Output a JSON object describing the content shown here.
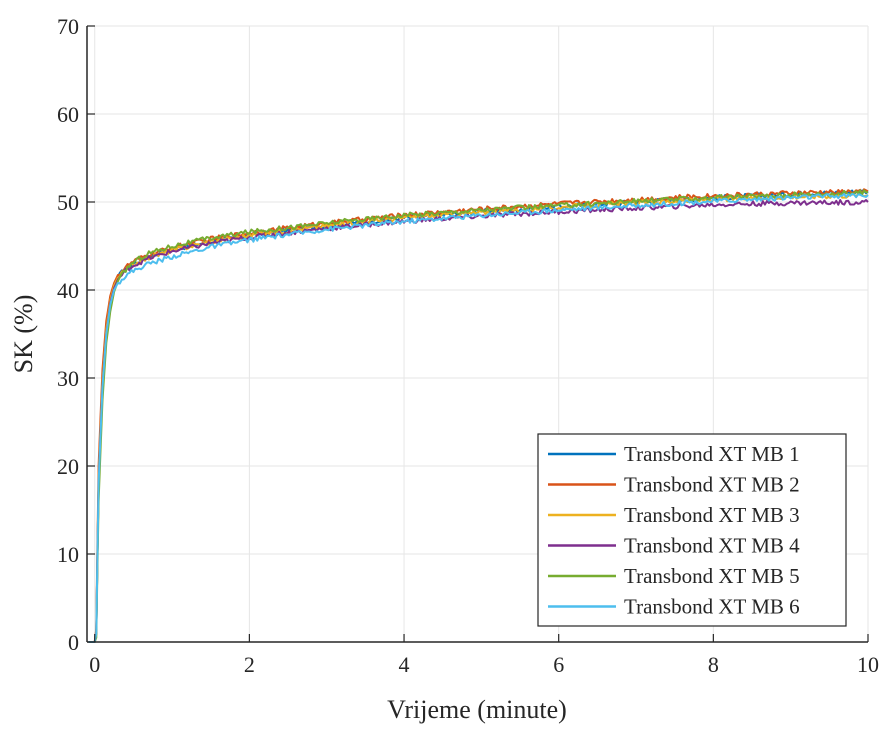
{
  "chart_data": {
    "type": "line",
    "title": "",
    "xlabel": "Vrijeme (minute)",
    "ylabel": "SK (%)",
    "xlim": [
      -0.1,
      10
    ],
    "ylim": [
      0,
      70
    ],
    "xticks": [
      0,
      2,
      4,
      6,
      8,
      10
    ],
    "yticks": [
      0,
      10,
      20,
      30,
      40,
      50,
      60,
      70
    ],
    "xtick_labels": [
      "0",
      "2",
      "4",
      "6",
      "8",
      "10"
    ],
    "ytick_labels": [
      "0",
      "10",
      "20",
      "30",
      "40",
      "50",
      "60",
      "70"
    ],
    "grid": true,
    "legend_position": "bottom-right",
    "x": [
      -0.08,
      0.0,
      0.02,
      0.05,
      0.1,
      0.15,
      0.2,
      0.25,
      0.3,
      0.4,
      0.5,
      0.7,
      1.0,
      1.5,
      2.0,
      3.0,
      4.0,
      5.0,
      6.0,
      7.0,
      8.0,
      9.0,
      10.0
    ],
    "series": [
      {
        "name": "Transbond XT MB 1",
        "color": "#0072BD",
        "values": [
          0,
          0,
          1,
          18,
          29,
          35,
          38.5,
          40.5,
          41.5,
          42.5,
          43,
          43.8,
          44.6,
          45.5,
          46.2,
          47.3,
          48.2,
          48.9,
          49.5,
          50.0,
          50.5,
          50.9,
          51.2
        ]
      },
      {
        "name": "Transbond XT MB 2",
        "color": "#D95319",
        "values": [
          0,
          0,
          1.5,
          20,
          31,
          36.5,
          39.3,
          40.8,
          41.7,
          42.6,
          43.2,
          44.0,
          44.8,
          45.8,
          46.5,
          47.6,
          48.5,
          49.2,
          49.8,
          50.3,
          50.7,
          51.0,
          51.2
        ]
      },
      {
        "name": "Transbond XT MB 3",
        "color": "#EDB120",
        "values": [
          0,
          0,
          1,
          18.5,
          29.5,
          35.5,
          38.8,
          40.5,
          41.4,
          42.3,
          42.9,
          43.7,
          44.5,
          45.5,
          46.2,
          47.3,
          48.2,
          48.8,
          49.4,
          49.9,
          50.3,
          50.6,
          50.8
        ]
      },
      {
        "name": "Transbond XT MB 4",
        "color": "#7E2F8E",
        "values": [
          0,
          0,
          1,
          18,
          29,
          35,
          38.5,
          40.2,
          41.2,
          42.2,
          42.8,
          43.6,
          44.4,
          45.3,
          46.0,
          47.0,
          47.8,
          48.4,
          48.9,
          49.3,
          49.7,
          49.9,
          50.0
        ]
      },
      {
        "name": "Transbond XT MB 5",
        "color": "#77AC30",
        "values": [
          0,
          0,
          0.5,
          16,
          27.5,
          34,
          37.5,
          39.8,
          41.0,
          42.3,
          43.2,
          44.2,
          45.0,
          45.9,
          46.6,
          47.6,
          48.5,
          49.1,
          49.6,
          50.1,
          50.5,
          50.8,
          51.1
        ]
      },
      {
        "name": "Transbond XT MB 6",
        "color": "#4DBEEE",
        "values": [
          0,
          0,
          1,
          18,
          29,
          35,
          38.3,
          40.0,
          40.8,
          41.6,
          42.2,
          43.0,
          43.8,
          44.9,
          45.7,
          46.9,
          47.8,
          48.5,
          49.1,
          49.6,
          50.1,
          50.5,
          50.8
        ]
      }
    ]
  }
}
